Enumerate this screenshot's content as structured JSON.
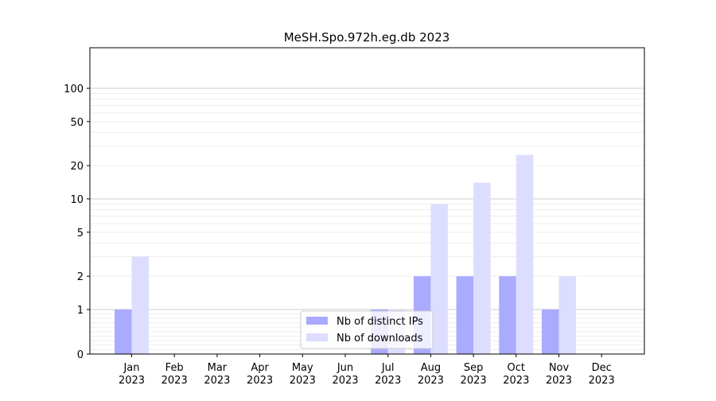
{
  "chart_data": {
    "type": "bar",
    "title": "MeSH.Spo.972h.eg.db 2023",
    "categories": [
      "Jan",
      "Feb",
      "Mar",
      "Apr",
      "May",
      "Jun",
      "Jul",
      "Aug",
      "Sep",
      "Oct",
      "Nov",
      "Dec"
    ],
    "category_years": [
      "2023",
      "2023",
      "2023",
      "2023",
      "2023",
      "2023",
      "2023",
      "2023",
      "2023",
      "2023",
      "2023",
      "2023"
    ],
    "series": [
      {
        "name": "Nb of distinct IPs",
        "color": "#aaaaff",
        "values": [
          1,
          0,
          0,
          0,
          0,
          0,
          1,
          2,
          2,
          2,
          1,
          0
        ]
      },
      {
        "name": "Nb of downloads",
        "color": "#ddddff",
        "values": [
          3,
          0,
          0,
          0,
          0,
          0,
          1,
          9,
          14,
          25,
          2,
          0
        ]
      }
    ],
    "y_scale": "symlog",
    "ylim": [
      0,
      120
    ],
    "yticks": [
      0,
      1,
      2,
      5,
      10,
      20,
      50,
      100
    ],
    "ytick_labels": [
      "0",
      "1",
      "2",
      "5",
      "10",
      "20",
      "50",
      "100"
    ],
    "grid": true,
    "legend_position": "lower center"
  }
}
